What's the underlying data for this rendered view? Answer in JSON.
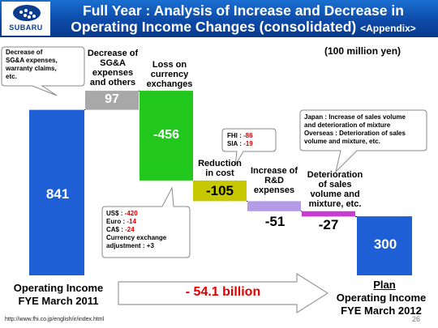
{
  "header": {
    "logo_text": "SUBARU",
    "title_line1": "Full Year : Analysis of Increase and Decrease in",
    "title_line2": "Operating Income Changes (consolidated)",
    "title_suffix": "<Appendix>"
  },
  "unit_label": "(100 million yen)",
  "chart_data": {
    "type": "bar",
    "subtype": "waterfall",
    "categories": [
      "Operating Income FYE March 2011",
      "Decrease of SG&A expenses and others",
      "Loss on currency exchanges",
      "Reduction in cost",
      "Increase of R&D expenses",
      "Deterioration of sales volume and mixture, etc.",
      "Plan Operating Income FYE March 2012"
    ],
    "values": [
      841,
      97,
      -456,
      -105,
      -51,
      -27,
      300
    ],
    "value_labels": [
      "841",
      "97",
      "-456",
      "-105",
      "-51",
      "-27",
      "300"
    ],
    "colors": [
      "#1f5fd6",
      "#a8a8a8",
      "#22c81e",
      "#c8c800",
      "#b49be6",
      "#c83cd2",
      "#1f5fd6"
    ]
  },
  "labels": {
    "start_line1": "Operating Income",
    "start_line2": "FYE March 2011",
    "sga_line1": "Decrease of",
    "sga_line2": "SG&A",
    "sga_line3": "expenses",
    "sga_line4": "and others",
    "fx_line1": "Loss on",
    "fx_line2": "currency",
    "fx_line3": "exchanges",
    "cost_line1": "Reduction",
    "cost_line2": "in cost",
    "rd_line1": "Increase of",
    "rd_line2": "R&D",
    "rd_line3": "expenses",
    "mix_line1": "Deterioration",
    "mix_line2": "of sales",
    "mix_line3": "volume and",
    "mix_line4": "mixture, etc.",
    "end_plan": "Plan",
    "end_line1": "Operating Income",
    "end_line2": "FYE March 2012"
  },
  "delta_text": "- 54.1 billion",
  "callouts": {
    "sga": [
      "Decrease of",
      "SG&A expenses,",
      "warranty claims,",
      "etc."
    ],
    "cost": [
      {
        "label": "FHI : ",
        "value": "-86"
      },
      {
        "label": "SIA : ",
        "value": "-19"
      }
    ],
    "mix": [
      "Japan : Increase of sales volume",
      "and deterioration of mixture",
      "Overseas : Deterioration of sales",
      "volume and mixture, etc."
    ],
    "fx": [
      {
        "label": "US$ : ",
        "value": "-420"
      },
      {
        "label": "Euro : ",
        "value": "-14"
      },
      {
        "label": "CA$ : ",
        "value": "-24"
      },
      {
        "label": "Currency exchange",
        "value": ""
      },
      {
        "label": "adjustment : ",
        "value": "+3"
      }
    ]
  },
  "footer": {
    "url": "http://www.fhi.co.jp/english/ir/index.html",
    "page": "26"
  }
}
